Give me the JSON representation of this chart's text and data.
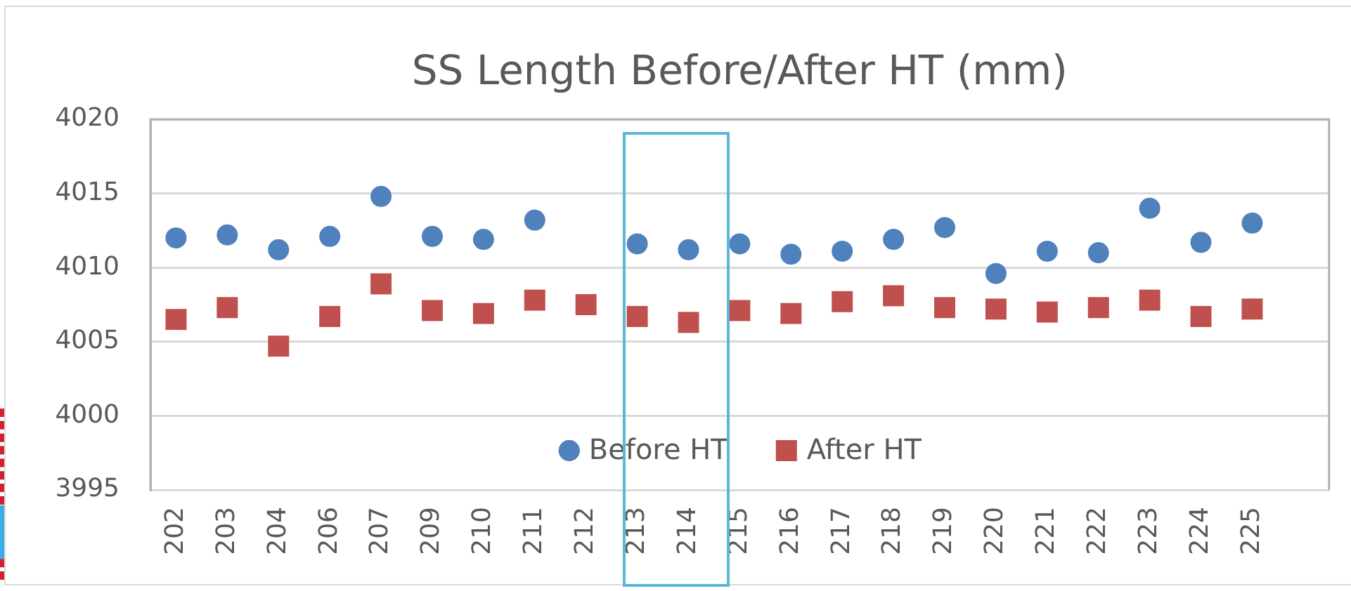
{
  "chart_data": {
    "type": "scatter",
    "title": "SS Length Before/After HT (mm)",
    "categories": [
      "202",
      "203",
      "204",
      "206",
      "207",
      "209",
      "210",
      "211",
      "212",
      "213",
      "214",
      "215",
      "216",
      "217",
      "218",
      "219",
      "220",
      "221",
      "222",
      "223",
      "224",
      "225",
      null
    ],
    "series": [
      {
        "name": "Before HT",
        "color": "#4f81bd",
        "marker": "circle",
        "values": [
          4012.0,
          4012.2,
          4011.2,
          4012.1,
          4014.8,
          4012.1,
          4011.9,
          4013.2,
          null,
          4011.6,
          4011.2,
          4011.6,
          4010.9,
          4011.1,
          4011.9,
          4012.7,
          4009.6,
          4011.1,
          4011.0,
          4014.0,
          4011.7,
          4013.0,
          null
        ]
      },
      {
        "name": "After HT",
        "color": "#c0504d",
        "marker": "square",
        "values": [
          4006.5,
          4007.3,
          4004.7,
          4006.7,
          4008.9,
          4007.1,
          4006.9,
          4007.8,
          4007.5,
          4006.7,
          4006.3,
          4007.1,
          4006.9,
          4007.7,
          4008.1,
          4007.3,
          4007.2,
          4007.0,
          4007.3,
          4007.8,
          4006.7,
          4007.2,
          null
        ]
      }
    ],
    "ylim": [
      3995,
      4020
    ],
    "yticks": [
      3995,
      4000,
      4005,
      4010,
      4015,
      4020
    ],
    "grid": "y",
    "legend": "bottom"
  }
}
